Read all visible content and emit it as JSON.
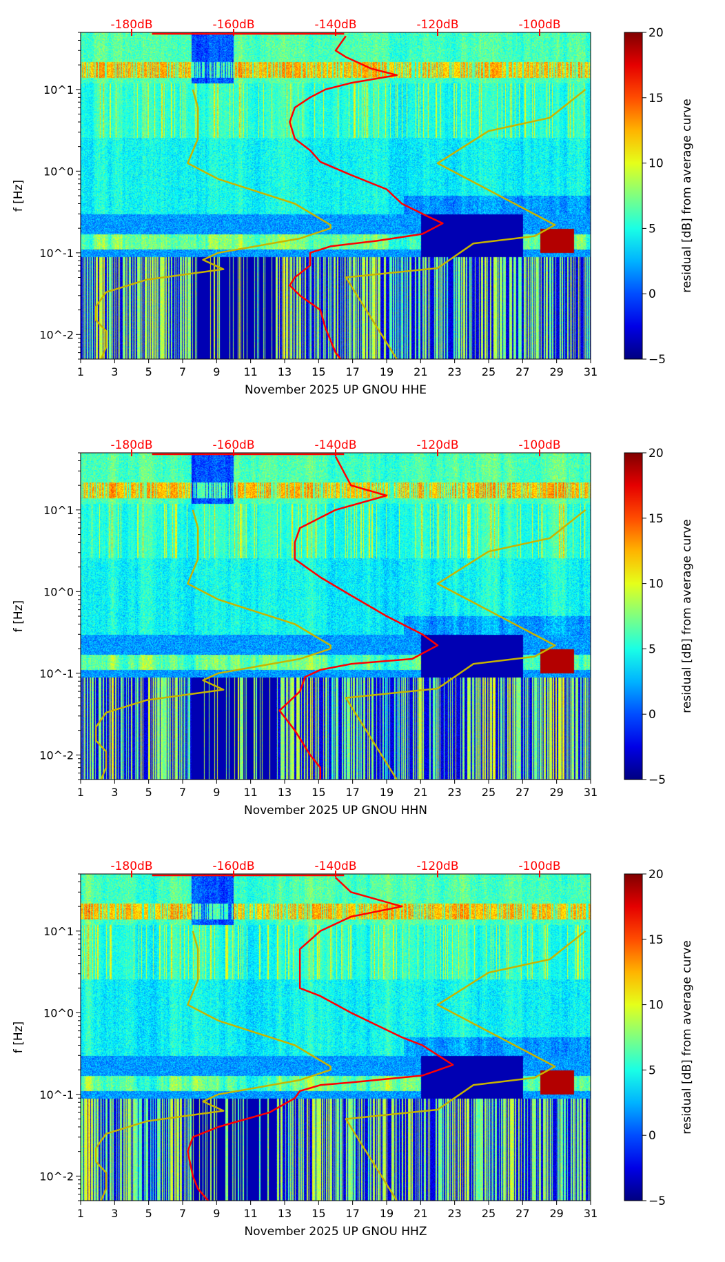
{
  "chart_data": [
    {
      "type": "heatmap",
      "title": "November 2025 UP GNOU  HHE",
      "xlabel": "November 2025 UP GNOU  HHE",
      "ylabel": "f [Hz]",
      "x_ticks": [
        "1",
        "3",
        "5",
        "7",
        "9",
        "11",
        "13",
        "15",
        "17",
        "19",
        "21",
        "23",
        "25",
        "27",
        "29",
        "31"
      ],
      "xlim": [
        1,
        31
      ],
      "ylim": [
        0.005,
        50
      ],
      "yscale": "log",
      "y_ticks": [
        "10^-2",
        "10^-1",
        "10^0",
        "10^1"
      ],
      "top_axis": {
        "label_ticks": [
          "-180dB",
          "-160dB",
          "-140dB",
          "-120dB",
          "-100dB"
        ],
        "values": [
          -180,
          -160,
          -140,
          -120,
          -100
        ],
        "range": [
          -190,
          -90
        ]
      },
      "colorbar": {
        "label": "residual [dB] from average curve",
        "ticks": [
          "20",
          "15",
          "10",
          "5",
          "0",
          "−5"
        ],
        "range": [
          -5,
          20
        ]
      },
      "series": [
        {
          "name": "average PSD",
          "color": "#ff0000",
          "x_db": [
            -138,
            -140,
            -138,
            -133,
            -128,
            -137,
            -142,
            -145,
            -148,
            -149,
            -148,
            -145,
            -143,
            -137,
            -130,
            -127,
            -122,
            -119,
            -123,
            -132,
            -141,
            -145,
            -145,
            -148,
            -149,
            -147,
            -143,
            -142,
            -140,
            -139
          ],
          "f_hz": [
            45,
            30,
            25,
            18,
            15,
            12,
            10,
            8,
            6,
            4,
            2.5,
            1.8,
            1.3,
            0.9,
            0.6,
            0.4,
            0.28,
            0.23,
            0.17,
            0.14,
            0.12,
            0.1,
            0.07,
            0.05,
            0.04,
            0.03,
            0.02,
            0.012,
            0.006,
            0.005
          ]
        },
        {
          "name": "NLNM",
          "color": "#c8b400",
          "x_db": [
            -186,
            -185,
            -185,
            -187,
            -187,
            -185,
            -177,
            -162,
            -166,
            -163,
            -147,
            -141,
            -141,
            -148,
            -163,
            -169,
            -167,
            -167,
            -168
          ],
          "f_hz": [
            0.005,
            0.007,
            0.011,
            0.015,
            0.022,
            0.033,
            0.047,
            0.063,
            0.082,
            0.1,
            0.15,
            0.2,
            0.22,
            0.4,
            0.8,
            1.25,
            2.5,
            6,
            10
          ]
        },
        {
          "name": "NHNM",
          "color": "#c8b400",
          "x_db": [
            -128,
            -138,
            -120,
            -113,
            -101,
            -97,
            -120,
            -110,
            -98,
            -91
          ],
          "f_hz": [
            0.005,
            0.05,
            0.065,
            0.13,
            0.16,
            0.22,
            1.25,
            3.1,
            4.5,
            10
          ]
        }
      ]
    },
    {
      "type": "heatmap",
      "title": "November 2025 UP GNOU  HHN",
      "xlabel": "November 2025 UP GNOU  HHN",
      "ylabel": "f [Hz]",
      "x_ticks": [
        "1",
        "3",
        "5",
        "7",
        "9",
        "11",
        "13",
        "15",
        "17",
        "19",
        "21",
        "23",
        "25",
        "27",
        "29",
        "31"
      ],
      "xlim": [
        1,
        31
      ],
      "ylim": [
        0.005,
        50
      ],
      "yscale": "log",
      "y_ticks": [
        "10^-2",
        "10^-1",
        "10^0",
        "10^1"
      ],
      "top_axis": {
        "label_ticks": [
          "-180dB",
          "-160dB",
          "-140dB",
          "-120dB",
          "-100dB"
        ],
        "values": [
          -180,
          -160,
          -140,
          -120,
          -100
        ],
        "range": [
          -190,
          -90
        ]
      },
      "colorbar": {
        "label": "residual [dB] from average curve",
        "ticks": [
          "20",
          "15",
          "10",
          "5",
          "0",
          "−5"
        ],
        "range": [
          -5,
          20
        ]
      },
      "series": [
        {
          "name": "average PSD",
          "color": "#ff0000",
          "x_db": [
            -140,
            -137,
            -130,
            -140,
            -147,
            -148,
            -148,
            -143,
            -137,
            -130,
            -123,
            -120,
            -125,
            -137,
            -143,
            -146,
            -147,
            -150,
            -151,
            -148,
            -145,
            -143,
            -143
          ],
          "f_hz": [
            45,
            20,
            15,
            10,
            6,
            4,
            2.5,
            1.5,
            0.9,
            0.5,
            0.3,
            0.22,
            0.15,
            0.13,
            0.11,
            0.09,
            0.06,
            0.04,
            0.035,
            0.02,
            0.01,
            0.007,
            0.005
          ]
        },
        {
          "name": "NLNM",
          "color": "#c8b400",
          "x_db": [
            -186,
            -185,
            -185,
            -187,
            -187,
            -185,
            -177,
            -162,
            -166,
            -163,
            -147,
            -141,
            -141,
            -148,
            -163,
            -169,
            -167,
            -167,
            -168
          ],
          "f_hz": [
            0.005,
            0.007,
            0.011,
            0.015,
            0.022,
            0.033,
            0.047,
            0.063,
            0.082,
            0.1,
            0.15,
            0.2,
            0.22,
            0.4,
            0.8,
            1.25,
            2.5,
            6,
            10
          ]
        },
        {
          "name": "NHNM",
          "color": "#c8b400",
          "x_db": [
            -128,
            -138,
            -120,
            -113,
            -101,
            -97,
            -120,
            -110,
            -98,
            -91
          ],
          "f_hz": [
            0.005,
            0.05,
            0.065,
            0.13,
            0.16,
            0.22,
            1.25,
            3.1,
            4.5,
            10
          ]
        }
      ]
    },
    {
      "type": "heatmap",
      "title": "November 2025 UP GNOU  HHZ",
      "xlabel": "November 2025 UP GNOU  HHZ",
      "ylabel": "f [Hz]",
      "x_ticks": [
        "1",
        "3",
        "5",
        "7",
        "9",
        "11",
        "13",
        "15",
        "17",
        "19",
        "21",
        "23",
        "25",
        "27",
        "29",
        "31"
      ],
      "xlim": [
        1,
        31
      ],
      "ylim": [
        0.005,
        50
      ],
      "yscale": "log",
      "y_ticks": [
        "10^-2",
        "10^-1",
        "10^0",
        "10^1"
      ],
      "top_axis": {
        "label_ticks": [
          "-180dB",
          "-160dB",
          "-140dB",
          "-120dB",
          "-100dB"
        ],
        "values": [
          -180,
          -160,
          -140,
          -120,
          -100
        ],
        "range": [
          -190,
          -90
        ]
      },
      "colorbar": {
        "label": "residual [dB] from average curve",
        "ticks": [
          "20",
          "15",
          "10",
          "5",
          "0",
          "−5"
        ],
        "range": [
          -5,
          20
        ]
      },
      "series": [
        {
          "name": "average PSD",
          "color": "#ff0000",
          "x_db": [
            -140,
            -137,
            -127,
            -137,
            -143,
            -147,
            -147,
            -147,
            -147,
            -143,
            -137,
            -127,
            -123,
            -117,
            -123,
            -137,
            -143,
            -147,
            -148,
            -153,
            -163,
            -168,
            -169,
            -168,
            -167,
            -165
          ],
          "f_hz": [
            45,
            30,
            20,
            15,
            10,
            6,
            4,
            3,
            2,
            1.6,
            1,
            0.5,
            0.4,
            0.23,
            0.17,
            0.14,
            0.13,
            0.11,
            0.09,
            0.06,
            0.04,
            0.03,
            0.02,
            0.01,
            0.007,
            0.005
          ]
        },
        {
          "name": "NLNM",
          "color": "#c8b400",
          "x_db": [
            -186,
            -185,
            -185,
            -187,
            -187,
            -185,
            -177,
            -162,
            -166,
            -163,
            -147,
            -141,
            -141,
            -148,
            -163,
            -169,
            -167,
            -167,
            -168
          ],
          "f_hz": [
            0.005,
            0.007,
            0.011,
            0.015,
            0.022,
            0.033,
            0.047,
            0.063,
            0.082,
            0.1,
            0.15,
            0.2,
            0.22,
            0.4,
            0.8,
            1.25,
            2.5,
            6,
            10
          ]
        },
        {
          "name": "NHNM",
          "color": "#c8b400",
          "x_db": [
            -128,
            -138,
            -120,
            -113,
            -101,
            -97,
            -120,
            -110,
            -98,
            -91
          ],
          "f_hz": [
            0.005,
            0.05,
            0.065,
            0.13,
            0.16,
            0.22,
            1.25,
            3.1,
            4.5,
            10
          ]
        }
      ]
    }
  ]
}
